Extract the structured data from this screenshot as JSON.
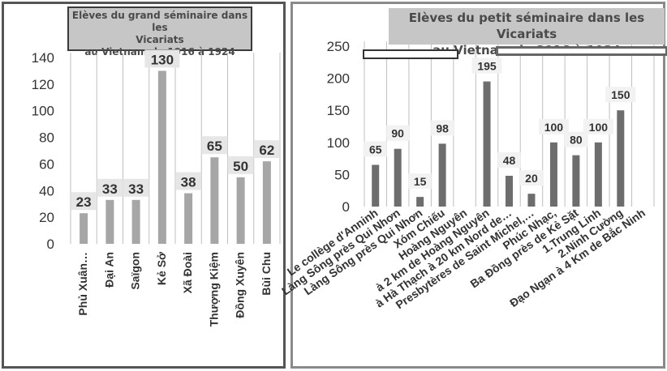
{
  "chart_data": [
    {
      "type": "bar",
      "title": "Elèves du grand séminaire dans les\nVicariats\nau Vietnam de 1916 à 1924",
      "categories": [
        "Phủ Xuân…",
        "Đại An",
        "Saïgon",
        "Kẻ Sở",
        "Xã Đoài",
        "Thượng Kiệm",
        "Đồng Xuyên",
        "Bùi Chu"
      ],
      "values": [
        23,
        33,
        33,
        130,
        38,
        65,
        50,
        62
      ],
      "yticks": [
        0,
        20,
        40,
        60,
        80,
        100,
        120,
        140
      ],
      "ylim": [
        0,
        140
      ],
      "grid": "vertical",
      "bar_color": "#a6a6a6"
    },
    {
      "type": "bar",
      "title": "Elèves du petit séminaire dans les Vicariats\nau Vietnam de 1916 à 1924",
      "categories": [
        "Le collège d'Anninh",
        "Làng Sông près Qui Nhơn",
        "Làng Sông près Qui Nhơn",
        "Xóm Chiếu",
        "Hoàng Nguyên",
        "à 2 km de Hoàng Nguyên",
        "à Hà Thạch à 20 km Nord de…",
        "Presbytères de Saint Michel,…",
        "Phúc Nhạc,",
        "Ba Đồng près de Kẻ Sặt",
        "1.Trung Linh",
        "2.Ninh Cường",
        "Đạo Ngạn à 4 Km de Bắc Ninh"
      ],
      "values": [
        65,
        90,
        15,
        98,
        null,
        195,
        48,
        20,
        100,
        80,
        100,
        150,
        null
      ],
      "data_labels": [
        "65",
        "90",
        "15",
        "98",
        "",
        "195",
        "48",
        "20",
        "100",
        "80",
        "100",
        "150",
        ""
      ],
      "yticks": [
        0,
        50,
        100,
        150,
        200,
        250
      ],
      "ylim": [
        0,
        250
      ],
      "grid": "vertical",
      "bar_color": "#6d6d6d"
    }
  ]
}
